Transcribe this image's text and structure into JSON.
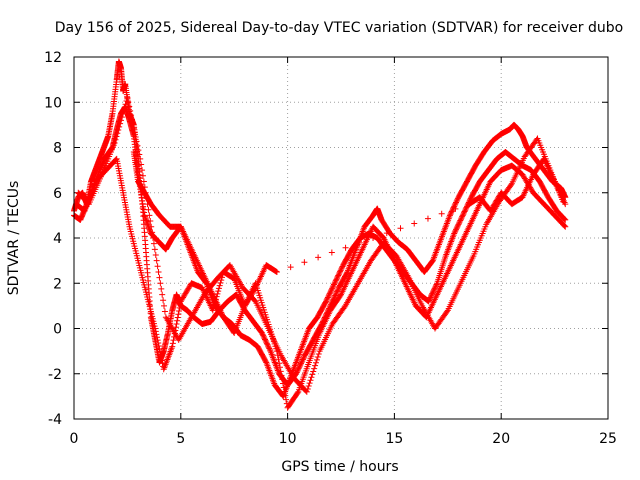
{
  "chart_data": {
    "type": "scatter",
    "title": "Day 156 of 2025, Sidereal Day-to-day VTEC variation (SDTVAR) for receiver dubo",
    "xlabel": "GPS time / hours",
    "ylabel": "SDTVAR / TECUs",
    "xlim": [
      0,
      25
    ],
    "ylim": [
      -4,
      12
    ],
    "xticks": [
      0,
      5,
      10,
      15,
      20,
      25
    ],
    "yticks": [
      -4,
      -2,
      0,
      2,
      4,
      6,
      8,
      10,
      12
    ],
    "grid": true,
    "marker": "+",
    "color": "#ff0000",
    "series": [
      {
        "x": [
          0.0,
          0.2,
          0.4,
          0.6,
          0.8,
          1.0,
          1.2,
          1.4,
          1.6,
          1.8,
          2.0,
          2.1,
          2.2,
          2.3,
          2.4,
          2.6,
          2.8,
          3.0,
          3.2,
          3.4,
          3.6,
          3.8,
          4.0,
          4.2,
          4.4,
          4.6,
          4.8,
          5.0,
          5.3,
          5.6,
          6.0,
          6.4,
          6.8,
          7.2,
          7.6,
          8.0,
          8.4,
          8.8,
          9.2,
          9.6,
          10.0,
          10.4,
          10.8,
          11.2,
          11.6,
          12.0,
          12.4,
          12.8,
          13.2,
          13.6,
          14.0,
          14.2,
          14.4,
          14.8,
          15.2,
          15.6,
          16.0,
          16.4,
          16.8,
          17.2,
          17.6,
          18.0,
          18.4,
          18.8,
          19.2,
          19.6,
          20.0,
          20.4,
          20.6,
          20.8,
          21.0,
          21.2,
          21.6,
          22.0,
          22.4,
          22.8,
          23.0
        ],
        "y": [
          5.2,
          5.8,
          6.0,
          5.5,
          6.5,
          7.0,
          7.5,
          8.0,
          8.5,
          9.5,
          11.0,
          11.8,
          11.5,
          10.5,
          10.8,
          9.5,
          9.0,
          7.5,
          5.5,
          3.0,
          0.5,
          -0.5,
          -1.5,
          -1.0,
          -0.2,
          0.8,
          1.5,
          1.0,
          0.8,
          0.5,
          0.2,
          0.3,
          0.8,
          1.2,
          1.5,
          0.8,
          0.3,
          -0.2,
          -1.0,
          -2.0,
          -2.5,
          -2.0,
          -1.2,
          -0.5,
          0.2,
          1.0,
          1.8,
          2.5,
          3.5,
          4.5,
          5.0,
          5.3,
          4.8,
          4.2,
          3.8,
          3.5,
          3.0,
          2.5,
          3.0,
          4.0,
          5.0,
          5.8,
          6.5,
          7.2,
          7.8,
          8.3,
          8.6,
          8.8,
          9.0,
          8.8,
          8.5,
          8.0,
          7.5,
          7.0,
          6.5,
          6.2,
          5.8
        ]
      },
      {
        "x": [
          0.0,
          0.3,
          0.6,
          0.9,
          1.2,
          1.5,
          1.8,
          2.0,
          2.2,
          2.4,
          2.6,
          2.8,
          3.0,
          3.3,
          3.6,
          4.0,
          4.3,
          4.6,
          5.0,
          5.4,
          5.8,
          6.2,
          6.6,
          7.0,
          7.4,
          7.8,
          8.2,
          8.6,
          9.0,
          9.4,
          9.8,
          10.2,
          10.6,
          11.0,
          11.4,
          11.8,
          12.2,
          12.6,
          13.0,
          13.4,
          13.8,
          14.2,
          14.6,
          15.0,
          15.4,
          15.8,
          16.2,
          16.6,
          17.0,
          17.4,
          17.8,
          18.2,
          18.6,
          19.0,
          19.4,
          19.8,
          20.2,
          20.6,
          21.0,
          21.4,
          21.8,
          22.2,
          22.6,
          23.0
        ],
        "y": [
          5.0,
          4.8,
          5.5,
          6.2,
          7.0,
          7.6,
          8.0,
          8.8,
          9.5,
          9.8,
          9.2,
          8.5,
          6.8,
          5.0,
          4.2,
          3.8,
          3.5,
          4.0,
          4.5,
          3.5,
          2.5,
          2.0,
          1.0,
          0.5,
          0.2,
          -0.3,
          -0.5,
          -0.8,
          -1.5,
          -2.5,
          -3.0,
          -2.0,
          -1.0,
          0.0,
          0.5,
          1.2,
          2.0,
          2.8,
          3.5,
          4.0,
          4.2,
          4.0,
          3.5,
          3.0,
          2.5,
          2.0,
          1.5,
          1.2,
          2.0,
          3.2,
          4.2,
          5.0,
          5.8,
          6.5,
          7.0,
          7.5,
          7.8,
          7.5,
          7.2,
          7.0,
          6.5,
          5.8,
          5.2,
          4.8
        ]
      },
      {
        "x": [
          0.1,
          0.5,
          1.0,
          1.5,
          2.0,
          2.3,
          2.6,
          3.0,
          3.4,
          3.8,
          4.2,
          4.6,
          5.0,
          5.5,
          6.0,
          6.5,
          7.0,
          7.5,
          8.0,
          8.5,
          9.0,
          9.5,
          10.0,
          10.5,
          11.0,
          11.5,
          12.0,
          12.5,
          13.0,
          13.5,
          14.0,
          14.5,
          15.0,
          15.5,
          16.0,
          16.5,
          17.0,
          17.5,
          18.0,
          18.5,
          19.0,
          19.5,
          20.0,
          20.5,
          21.0,
          21.5,
          22.0,
          22.5,
          23.0
        ],
        "y": [
          5.5,
          5.2,
          6.5,
          7.0,
          7.5,
          6.0,
          4.5,
          3.0,
          1.5,
          0.0,
          -1.8,
          -0.8,
          1.2,
          2.0,
          1.8,
          0.8,
          2.5,
          2.2,
          1.0,
          2.0,
          0.5,
          -1.0,
          -3.5,
          -2.8,
          -1.5,
          -0.2,
          0.8,
          1.5,
          2.5,
          3.5,
          4.5,
          4.0,
          3.0,
          2.0,
          1.0,
          0.5,
          1.5,
          2.5,
          3.5,
          4.5,
          5.5,
          6.5,
          7.0,
          7.2,
          6.8,
          6.0,
          5.5,
          5.0,
          4.5
        ]
      },
      {
        "x": [
          0.2,
          0.7,
          1.3,
          1.9,
          2.5,
          3.1,
          3.7,
          4.3,
          4.9,
          5.5,
          6.1,
          6.7,
          7.3,
          7.9,
          8.5,
          9.1,
          9.7,
          10.3,
          10.9,
          11.5,
          12.1,
          12.7,
          13.3,
          13.9,
          14.5,
          15.1,
          15.7,
          16.3,
          16.9,
          17.5,
          18.1,
          18.7,
          19.3,
          19.9,
          20.5,
          21.1,
          21.7,
          22.3,
          22.9
        ],
        "y": [
          6.0,
          5.5,
          6.8,
          8.2,
          10.2,
          7.5,
          4.0,
          0.5,
          -0.5,
          0.5,
          1.5,
          2.2,
          2.8,
          1.8,
          1.2,
          0.0,
          -1.2,
          -2.2,
          -2.8,
          -1.0,
          0.2,
          1.0,
          2.0,
          3.0,
          3.8,
          3.2,
          2.2,
          1.0,
          0.0,
          0.8,
          2.0,
          3.2,
          4.6,
          5.6,
          6.4,
          7.6,
          8.4,
          7.0,
          5.6
        ]
      },
      {
        "x": [
          2.8,
          3.0,
          3.3,
          3.6,
          4.0,
          4.5,
          5.0,
          5.5,
          6.0,
          6.5,
          7.0,
          7.5,
          8.0,
          8.5,
          9.0,
          9.5,
          18.5,
          19.0,
          19.5,
          20.0,
          20.5,
          21.0,
          21.5,
          22.0,
          22.5,
          23.0
        ],
        "y": [
          7.8,
          6.5,
          6.0,
          5.5,
          5.0,
          4.5,
          4.5,
          3.5,
          2.5,
          1.5,
          0.5,
          -0.2,
          1.0,
          1.8,
          2.8,
          2.5,
          5.5,
          5.8,
          5.2,
          6.0,
          5.5,
          5.8,
          6.8,
          7.5,
          6.5,
          5.5
        ]
      }
    ]
  }
}
